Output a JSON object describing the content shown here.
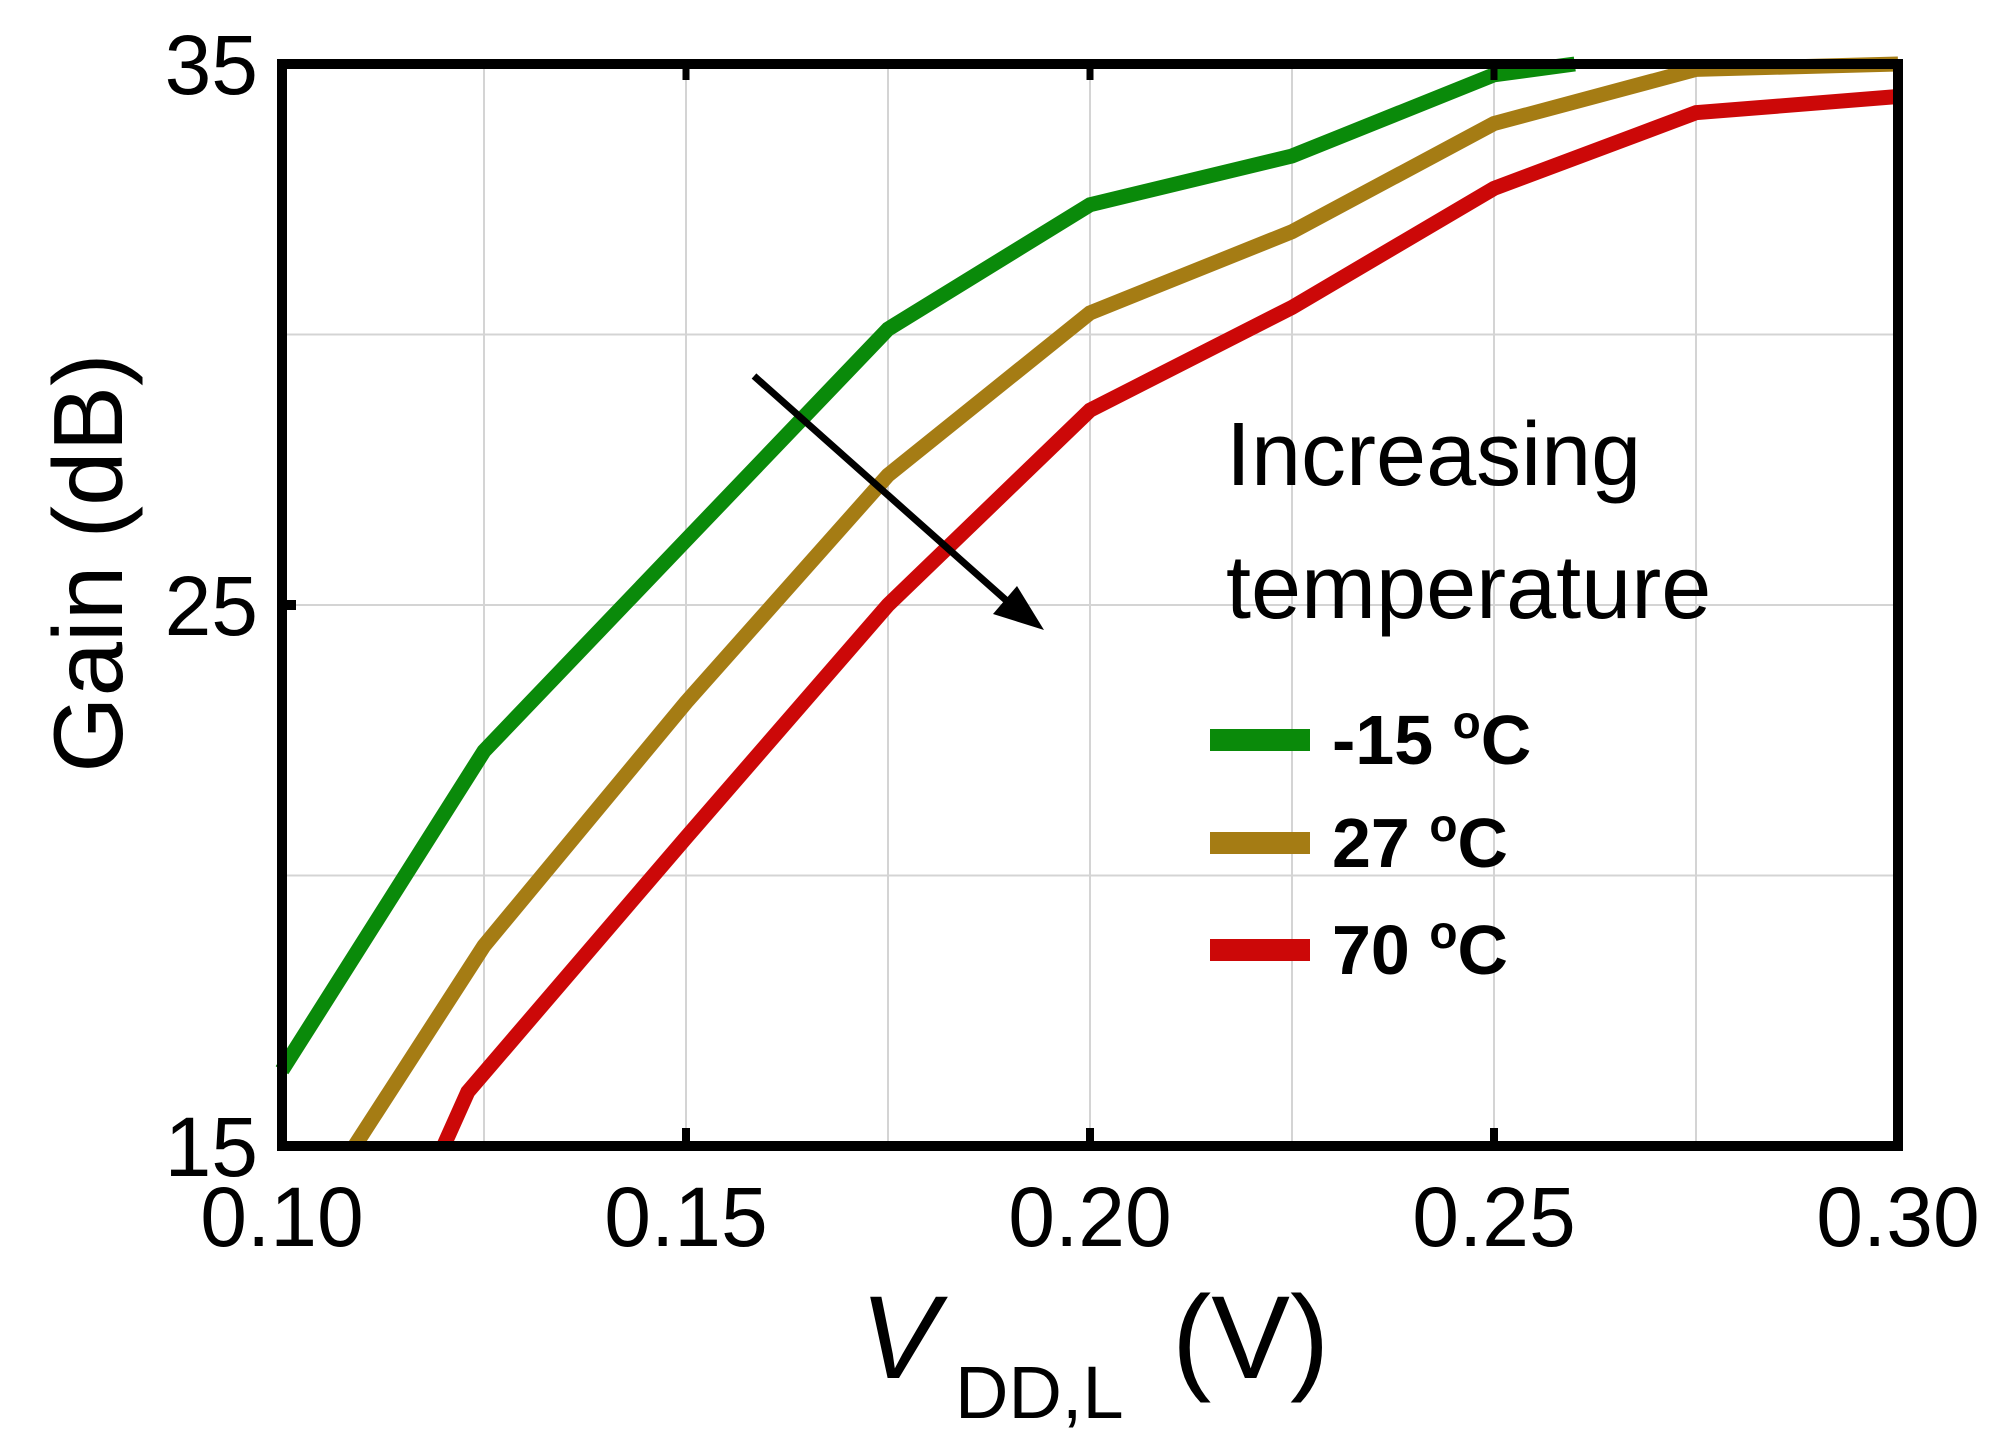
{
  "chart_data": {
    "type": "line",
    "title": "",
    "xlabel": {
      "main": "V",
      "sub": "DD,L",
      "unit": "(V)"
    },
    "ylabel": "Gain (dB)",
    "xlim": [
      0.1,
      0.3
    ],
    "ylim": [
      15,
      35
    ],
    "xticks": [
      0.1,
      0.15,
      0.2,
      0.25,
      0.3
    ],
    "xtick_labels": [
      "0.10",
      "0.15",
      "0.20",
      "0.25",
      "0.30"
    ],
    "yticks": [
      15,
      25,
      35
    ],
    "ytick_labels": [
      "15",
      "25",
      "35"
    ],
    "grid": true,
    "annotation": {
      "line1": "Increasing",
      "line2": "temperature"
    },
    "series": [
      {
        "name": "-15",
        "unit_sup": "o",
        "unit": "C",
        "color": "#0a8a0a",
        "x": [
          0.1,
          0.125,
          0.15,
          0.175,
          0.2,
          0.225,
          0.25,
          0.26
        ],
        "y": [
          16.4,
          22.3,
          26.2,
          30.1,
          32.4,
          33.3,
          34.8,
          35.0
        ]
      },
      {
        "name": "27",
        "unit_sup": "o",
        "unit": "C",
        "color": "#a57c14",
        "x": [
          0.109,
          0.125,
          0.15,
          0.175,
          0.2,
          0.225,
          0.25,
          0.275,
          0.3
        ],
        "y": [
          15.0,
          18.7,
          23.2,
          27.4,
          30.4,
          31.9,
          33.9,
          34.9,
          35.0
        ]
      },
      {
        "name": "70",
        "unit_sup": "o",
        "unit": "C",
        "color": "#cc0808",
        "x": [
          0.12,
          0.123,
          0.15,
          0.175,
          0.2,
          0.225,
          0.25,
          0.275,
          0.3
        ],
        "y": [
          15.0,
          16.0,
          20.7,
          25.0,
          28.6,
          30.5,
          32.7,
          34.1,
          34.4
        ]
      }
    ]
  }
}
